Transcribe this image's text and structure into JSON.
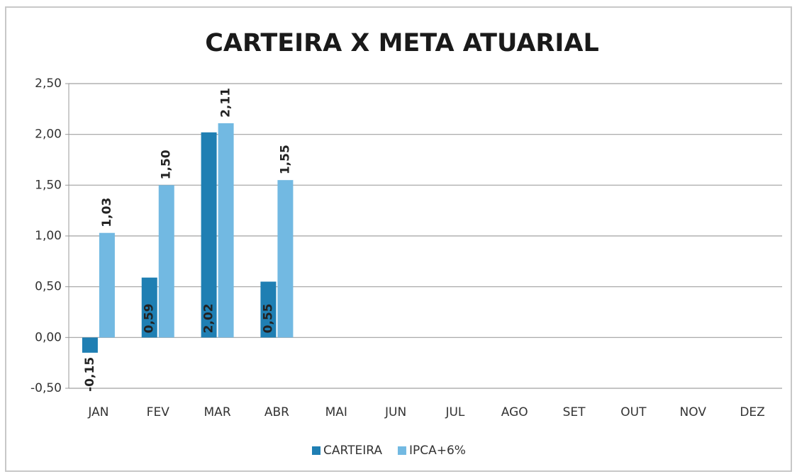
{
  "chart_data": {
    "type": "bar",
    "title": "CARTEIRA X META ATUARIAL",
    "categories": [
      "JAN",
      "FEV",
      "MAR",
      "ABR",
      "MAI",
      "JUN",
      "JUL",
      "AGO",
      "SET",
      "OUT",
      "NOV",
      "DEZ"
    ],
    "series": [
      {
        "name": "CARTEIRA",
        "color": "#1f7fb3",
        "values": [
          -0.15,
          0.59,
          2.02,
          0.55,
          null,
          null,
          null,
          null,
          null,
          null,
          null,
          null
        ],
        "value_labels": [
          "-0,15",
          "0,59",
          "2,02",
          "0,55",
          null,
          null,
          null,
          null,
          null,
          null,
          null,
          null
        ]
      },
      {
        "name": "IPCA+6%",
        "color": "#72b9e2",
        "values": [
          1.03,
          1.5,
          2.11,
          1.55,
          null,
          null,
          null,
          null,
          null,
          null,
          null,
          null
        ],
        "value_labels": [
          "1,03",
          "1,50",
          "2,11",
          "1,55",
          null,
          null,
          null,
          null,
          null,
          null,
          null,
          null
        ]
      }
    ],
    "ylim": [
      -0.5,
      2.5
    ],
    "yticks": [
      {
        "value": -0.5,
        "label": "-0,50"
      },
      {
        "value": 0,
        "label": "0,00"
      },
      {
        "value": 0.5,
        "label": "0,50"
      },
      {
        "value": 1,
        "label": "1,00"
      },
      {
        "value": 1.5,
        "label": "1,50"
      },
      {
        "value": 2,
        "label": "2,00"
      },
      {
        "value": 2.5,
        "label": "2,50"
      }
    ],
    "grid": true,
    "legend": "bottom"
  }
}
